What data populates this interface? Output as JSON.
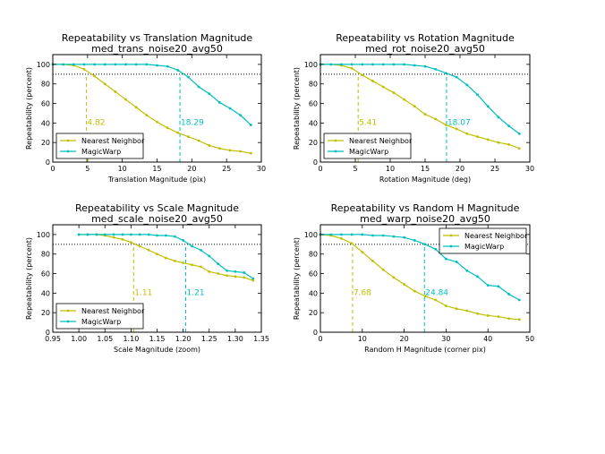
{
  "chart_data": [
    {
      "type": "line",
      "title": "Repeatability vs Translation Magnitude",
      "subtitle": "med_trans_noise20_avg50",
      "xlabel": "Translation Magnitude (pix)",
      "ylabel": "Repeatability (percent)",
      "xlim": [
        0,
        30
      ],
      "ylim": [
        0,
        110
      ],
      "xticks": [
        0,
        5,
        10,
        15,
        20,
        25,
        30
      ],
      "xtick_labels": [
        "0",
        "5",
        "10",
        "15",
        "20",
        "25",
        "30"
      ],
      "yticks": [
        0,
        20,
        40,
        60,
        80,
        100
      ],
      "ytick_labels": [
        "0",
        "20",
        "40",
        "60",
        "80",
        "100"
      ],
      "hline": 90,
      "legend": "lower-left",
      "series": [
        {
          "name": "Nearest Neighbor",
          "color": "#bfbf00",
          "x": [
            0,
            1.5,
            3,
            4.5,
            6,
            7.5,
            9,
            10.5,
            12,
            13.5,
            15,
            16.5,
            18,
            19.5,
            21,
            22.5,
            24,
            25.5,
            27,
            28.5
          ],
          "y": [
            100,
            100,
            99,
            95,
            88,
            80,
            72,
            64,
            56,
            48,
            41,
            35,
            30,
            26,
            22,
            17,
            14,
            12,
            11,
            9
          ]
        },
        {
          "name": "MagicWarp",
          "color": "#00bfbf",
          "x": [
            0,
            1.5,
            3,
            4.5,
            6,
            7.5,
            9,
            10.5,
            12,
            13.5,
            15,
            16.5,
            18,
            19.5,
            21,
            22.5,
            24,
            25.5,
            27,
            28.5
          ],
          "y": [
            100,
            100,
            100,
            100,
            100,
            100,
            100,
            100,
            100,
            100,
            99,
            98,
            94,
            87,
            77,
            70,
            61,
            55,
            48,
            38
          ]
        }
      ],
      "vlines": [
        {
          "x": 4.82,
          "label": "4.82",
          "color": "#bfbf00"
        },
        {
          "x": 18.29,
          "label": "18.29",
          "color": "#00bfbf"
        }
      ]
    },
    {
      "type": "line",
      "title": "Repeatability vs Rotation Magnitude",
      "subtitle": "med_rot_noise20_avg50",
      "xlabel": "Rotation Magnitude (deg)",
      "ylabel": "Repeatability (percent)",
      "xlim": [
        0,
        30
      ],
      "ylim": [
        0,
        110
      ],
      "xticks": [
        0,
        5,
        10,
        15,
        20,
        25,
        30
      ],
      "xtick_labels": [
        "0",
        "5",
        "10",
        "15",
        "20",
        "25",
        "30"
      ],
      "yticks": [
        0,
        20,
        40,
        60,
        80,
        100
      ],
      "ytick_labels": [
        "0",
        "20",
        "40",
        "60",
        "80",
        "100"
      ],
      "hline": 90,
      "legend": "lower-left",
      "series": [
        {
          "name": "Nearest Neighbor",
          "color": "#bfbf00",
          "x": [
            0,
            1.5,
            3,
            4.5,
            6,
            7.5,
            9,
            10.5,
            12,
            13.5,
            15,
            16.5,
            18,
            19.5,
            21,
            22.5,
            24,
            25.5,
            27,
            28.5
          ],
          "y": [
            100,
            100,
            99,
            96,
            89,
            83,
            77,
            71,
            64,
            57,
            49,
            44,
            38,
            34,
            29,
            26,
            23,
            20,
            18,
            14
          ]
        },
        {
          "name": "MagicWarp",
          "color": "#00bfbf",
          "x": [
            0,
            1.5,
            3,
            4.5,
            6,
            7.5,
            9,
            10.5,
            12,
            13.5,
            15,
            16.5,
            18,
            19.5,
            21,
            22.5,
            24,
            25.5,
            27,
            28.5
          ],
          "y": [
            100,
            100,
            100,
            100,
            100,
            100,
            100,
            100,
            100,
            99,
            98,
            95,
            91,
            87,
            79,
            69,
            57,
            46,
            37,
            29
          ]
        }
      ],
      "vlines": [
        {
          "x": 5.41,
          "label": "5.41",
          "color": "#bfbf00"
        },
        {
          "x": 18.07,
          "label": "18.07",
          "color": "#00bfbf"
        }
      ]
    },
    {
      "type": "line",
      "title": "Repeatability vs Scale Magnitude",
      "subtitle": "med_scale_noise20_avg50",
      "xlabel": "Scale Magnitude (zoom)",
      "ylabel": "Repeatability (percent)",
      "xlim": [
        0.95,
        1.35
      ],
      "ylim": [
        0,
        110
      ],
      "xticks": [
        0.95,
        1.0,
        1.05,
        1.1,
        1.15,
        1.2,
        1.25,
        1.3,
        1.35
      ],
      "xtick_labels": [
        "0.95",
        "1.00",
        "1.05",
        "1.10",
        "1.15",
        "1.20",
        "1.25",
        "1.30",
        "1.35"
      ],
      "yticks": [
        0,
        20,
        40,
        60,
        80,
        100
      ],
      "ytick_labels": [
        "0",
        "20",
        "40",
        "60",
        "80",
        "100"
      ],
      "hline": 90,
      "legend": "lower-left",
      "series": [
        {
          "name": "Nearest Neighbor",
          "color": "#bfbf00",
          "x": [
            1.0,
            1.017,
            1.034,
            1.05,
            1.067,
            1.084,
            1.1,
            1.117,
            1.134,
            1.15,
            1.167,
            1.184,
            1.2,
            1.217,
            1.234,
            1.25,
            1.267,
            1.284,
            1.3,
            1.317,
            1.334
          ],
          "y": [
            100,
            100,
            100,
            99,
            97,
            95,
            92,
            88,
            84,
            80,
            76,
            73,
            71,
            69,
            67,
            62,
            60,
            58,
            57,
            56,
            53
          ]
        },
        {
          "name": "MagicWarp",
          "color": "#00bfbf",
          "x": [
            1.0,
            1.017,
            1.034,
            1.05,
            1.067,
            1.084,
            1.1,
            1.117,
            1.134,
            1.15,
            1.167,
            1.184,
            1.2,
            1.217,
            1.234,
            1.25,
            1.267,
            1.284,
            1.3,
            1.317,
            1.334
          ],
          "y": [
            100,
            100,
            100,
            100,
            100,
            100,
            100,
            100,
            100,
            99,
            99,
            98,
            94,
            88,
            84,
            78,
            70,
            63,
            62,
            61,
            55
          ]
        }
      ],
      "vlines": [
        {
          "x": 1.105,
          "label": "1.11",
          "color": "#bfbf00"
        },
        {
          "x": 1.205,
          "label": "1.21",
          "color": "#00bfbf"
        }
      ]
    },
    {
      "type": "line",
      "title": "Repeatability vs Random H Magnitude",
      "subtitle": "med_warp_noise20_avg50",
      "xlabel": "Random H Magnitude (corner pix)",
      "ylabel": "Repeatability (percent)",
      "xlim": [
        0,
        50
      ],
      "ylim": [
        0,
        110
      ],
      "xticks": [
        0,
        10,
        20,
        30,
        40,
        50
      ],
      "xtick_labels": [
        "0",
        "10",
        "20",
        "30",
        "40",
        "50"
      ],
      "yticks": [
        0,
        20,
        40,
        60,
        80,
        100
      ],
      "ytick_labels": [
        "0",
        "20",
        "40",
        "60",
        "80",
        "100"
      ],
      "hline": 90,
      "legend": "upper-right",
      "series": [
        {
          "name": "Nearest Neighbor",
          "color": "#bfbf00",
          "x": [
            0,
            2.5,
            5,
            7.5,
            10,
            12.5,
            15,
            17.5,
            20,
            22.5,
            25,
            27.5,
            30,
            32.5,
            35,
            37.5,
            40,
            42.5,
            45,
            47.5
          ],
          "y": [
            100,
            99,
            96,
            91,
            82,
            73,
            64,
            56,
            49,
            42,
            37,
            33,
            27,
            24,
            22,
            19,
            17,
            16,
            14,
            13
          ]
        },
        {
          "name": "MagicWarp",
          "color": "#00bfbf",
          "x": [
            0,
            2.5,
            5,
            7.5,
            10,
            12.5,
            15,
            17.5,
            20,
            22.5,
            25,
            27.5,
            30,
            32.5,
            35,
            37.5,
            40,
            42.5,
            45,
            47.5
          ],
          "y": [
            100,
            100,
            100,
            100,
            100,
            99,
            99,
            98,
            97,
            94,
            90,
            85,
            75,
            72,
            63,
            57,
            48,
            47,
            39,
            33
          ]
        }
      ],
      "vlines": [
        {
          "x": 7.68,
          "label": "7.68",
          "color": "#bfbf00"
        },
        {
          "x": 24.84,
          "label": "24.84",
          "color": "#00bfbf"
        }
      ]
    }
  ]
}
